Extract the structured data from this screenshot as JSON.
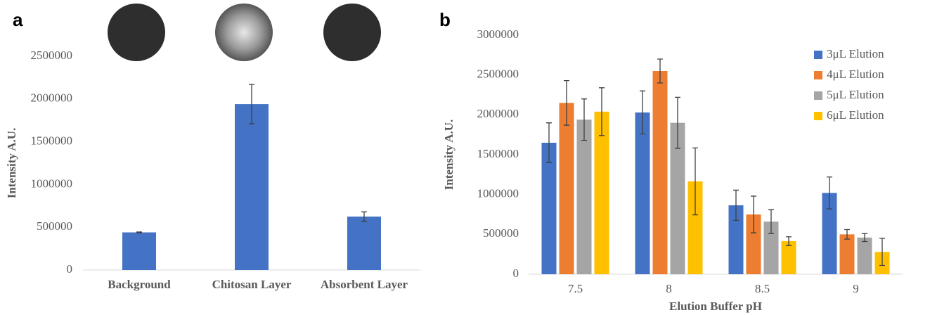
{
  "chart_data": [
    {
      "type": "bar",
      "panel": "a",
      "ylabel": "Intensity A.U.",
      "categories": [
        "Background",
        "Chitosan Layer",
        "Absorbent Layer"
      ],
      "values": [
        440000,
        1940000,
        625000
      ],
      "errors": [
        5000,
        230000,
        55000
      ],
      "color": "#4472c4",
      "ylim": [
        0,
        2500000
      ],
      "yticks": [
        0,
        500000,
        1000000,
        1500000,
        2000000,
        2500000
      ]
    },
    {
      "type": "bar",
      "panel": "b",
      "ylabel": "Intensity A.U.",
      "xlabel": "Elution Buffer pH",
      "categories": [
        "7.5",
        "8",
        "8.5",
        "9"
      ],
      "series": [
        {
          "name": "3μL Elution",
          "color": "#4472c4",
          "values": [
            1650000,
            2030000,
            865000,
            1020000
          ],
          "errors": [
            250000,
            270000,
            190000,
            200000
          ]
        },
        {
          "name": "4μL Elution",
          "color": "#ed7d31",
          "values": [
            2150000,
            2550000,
            750000,
            500000
          ],
          "errors": [
            280000,
            150000,
            230000,
            60000
          ]
        },
        {
          "name": "5μL Elution",
          "color": "#a5a5a5",
          "values": [
            1940000,
            1900000,
            660000,
            460000
          ],
          "errors": [
            260000,
            320000,
            150000,
            50000
          ]
        },
        {
          "name": "6μL Elution",
          "color": "#ffc000",
          "values": [
            2040000,
            1165000,
            415000,
            280000
          ],
          "errors": [
            300000,
            420000,
            55000,
            170000
          ]
        }
      ],
      "ylim": [
        0,
        3000000
      ],
      "yticks": [
        0,
        500000,
        1000000,
        1500000,
        2000000,
        2500000,
        3000000
      ],
      "legend": "upper right"
    }
  ]
}
